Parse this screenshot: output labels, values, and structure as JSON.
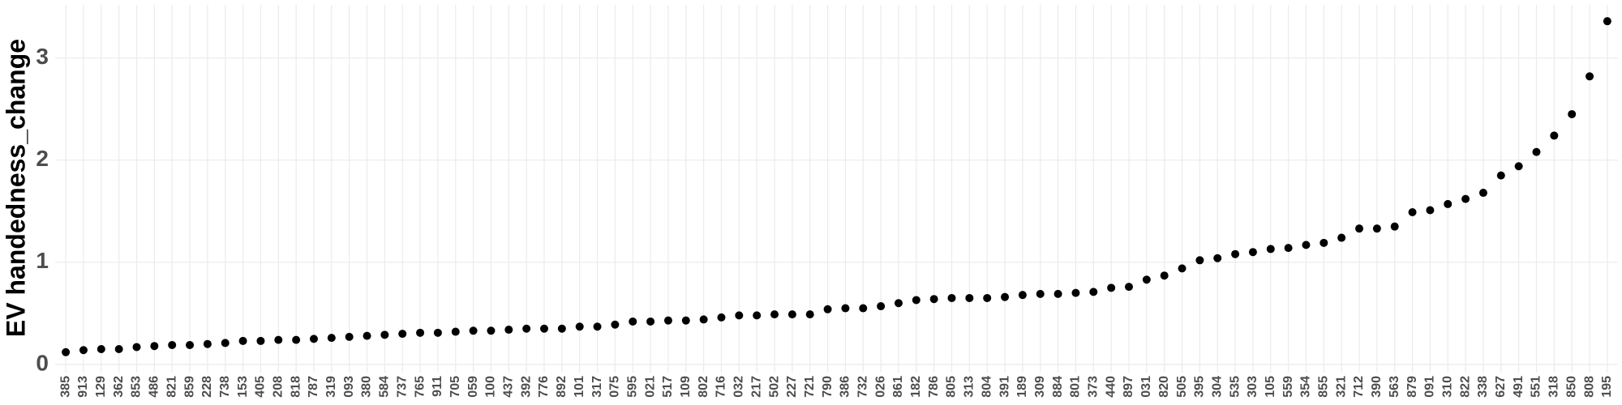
{
  "chart_data": {
    "type": "scatter",
    "y_label": "EV handedness_change",
    "categories": [
      "385",
      "913",
      "129",
      "362",
      "853",
      "486",
      "821",
      "859",
      "228",
      "738",
      "153",
      "405",
      "208",
      "818",
      "787",
      "319",
      "093",
      "380",
      "584",
      "737",
      "765",
      "911",
      "705",
      "059",
      "100",
      "437",
      "392",
      "776",
      "892",
      "101",
      "317",
      "075",
      "595",
      "021",
      "517",
      "109",
      "802",
      "716",
      "032",
      "217",
      "502",
      "227",
      "721",
      "790",
      "386",
      "732",
      "026",
      "861",
      "182",
      "786",
      "805",
      "313",
      "804",
      "391",
      "189",
      "309",
      "884",
      "801",
      "373",
      "440",
      "897",
      "031",
      "820",
      "505",
      "395",
      "304",
      "535",
      "303",
      "105",
      "559",
      "354",
      "855",
      "321",
      "712",
      "390",
      "563",
      "879",
      "091",
      "310",
      "822",
      "338",
      "627",
      "491",
      "551",
      "318",
      "850",
      "808",
      "195"
    ],
    "values": [
      0.12,
      0.14,
      0.15,
      0.15,
      0.17,
      0.18,
      0.19,
      0.19,
      0.2,
      0.21,
      0.23,
      0.23,
      0.24,
      0.24,
      0.25,
      0.26,
      0.27,
      0.28,
      0.29,
      0.3,
      0.31,
      0.31,
      0.32,
      0.33,
      0.33,
      0.34,
      0.35,
      0.35,
      0.35,
      0.37,
      0.37,
      0.39,
      0.42,
      0.42,
      0.43,
      0.43,
      0.44,
      0.46,
      0.48,
      0.48,
      0.49,
      0.49,
      0.49,
      0.54,
      0.55,
      0.55,
      0.57,
      0.6,
      0.63,
      0.64,
      0.65,
      0.65,
      0.65,
      0.66,
      0.68,
      0.69,
      0.69,
      0.7,
      0.71,
      0.75,
      0.76,
      0.83,
      0.87,
      0.94,
      1.02,
      1.04,
      1.08,
      1.1,
      1.13,
      1.14,
      1.17,
      1.19,
      1.24,
      1.33,
      1.33,
      1.35,
      1.49,
      1.51,
      1.57,
      1.62,
      1.68,
      1.85,
      1.94,
      2.08,
      2.24,
      2.45,
      2.82,
      3.36
    ],
    "color": "#000000",
    "ylim": [
      -0.08,
      3.52
    ],
    "yticks": [
      0,
      1,
      2,
      3
    ],
    "grid": true
  }
}
